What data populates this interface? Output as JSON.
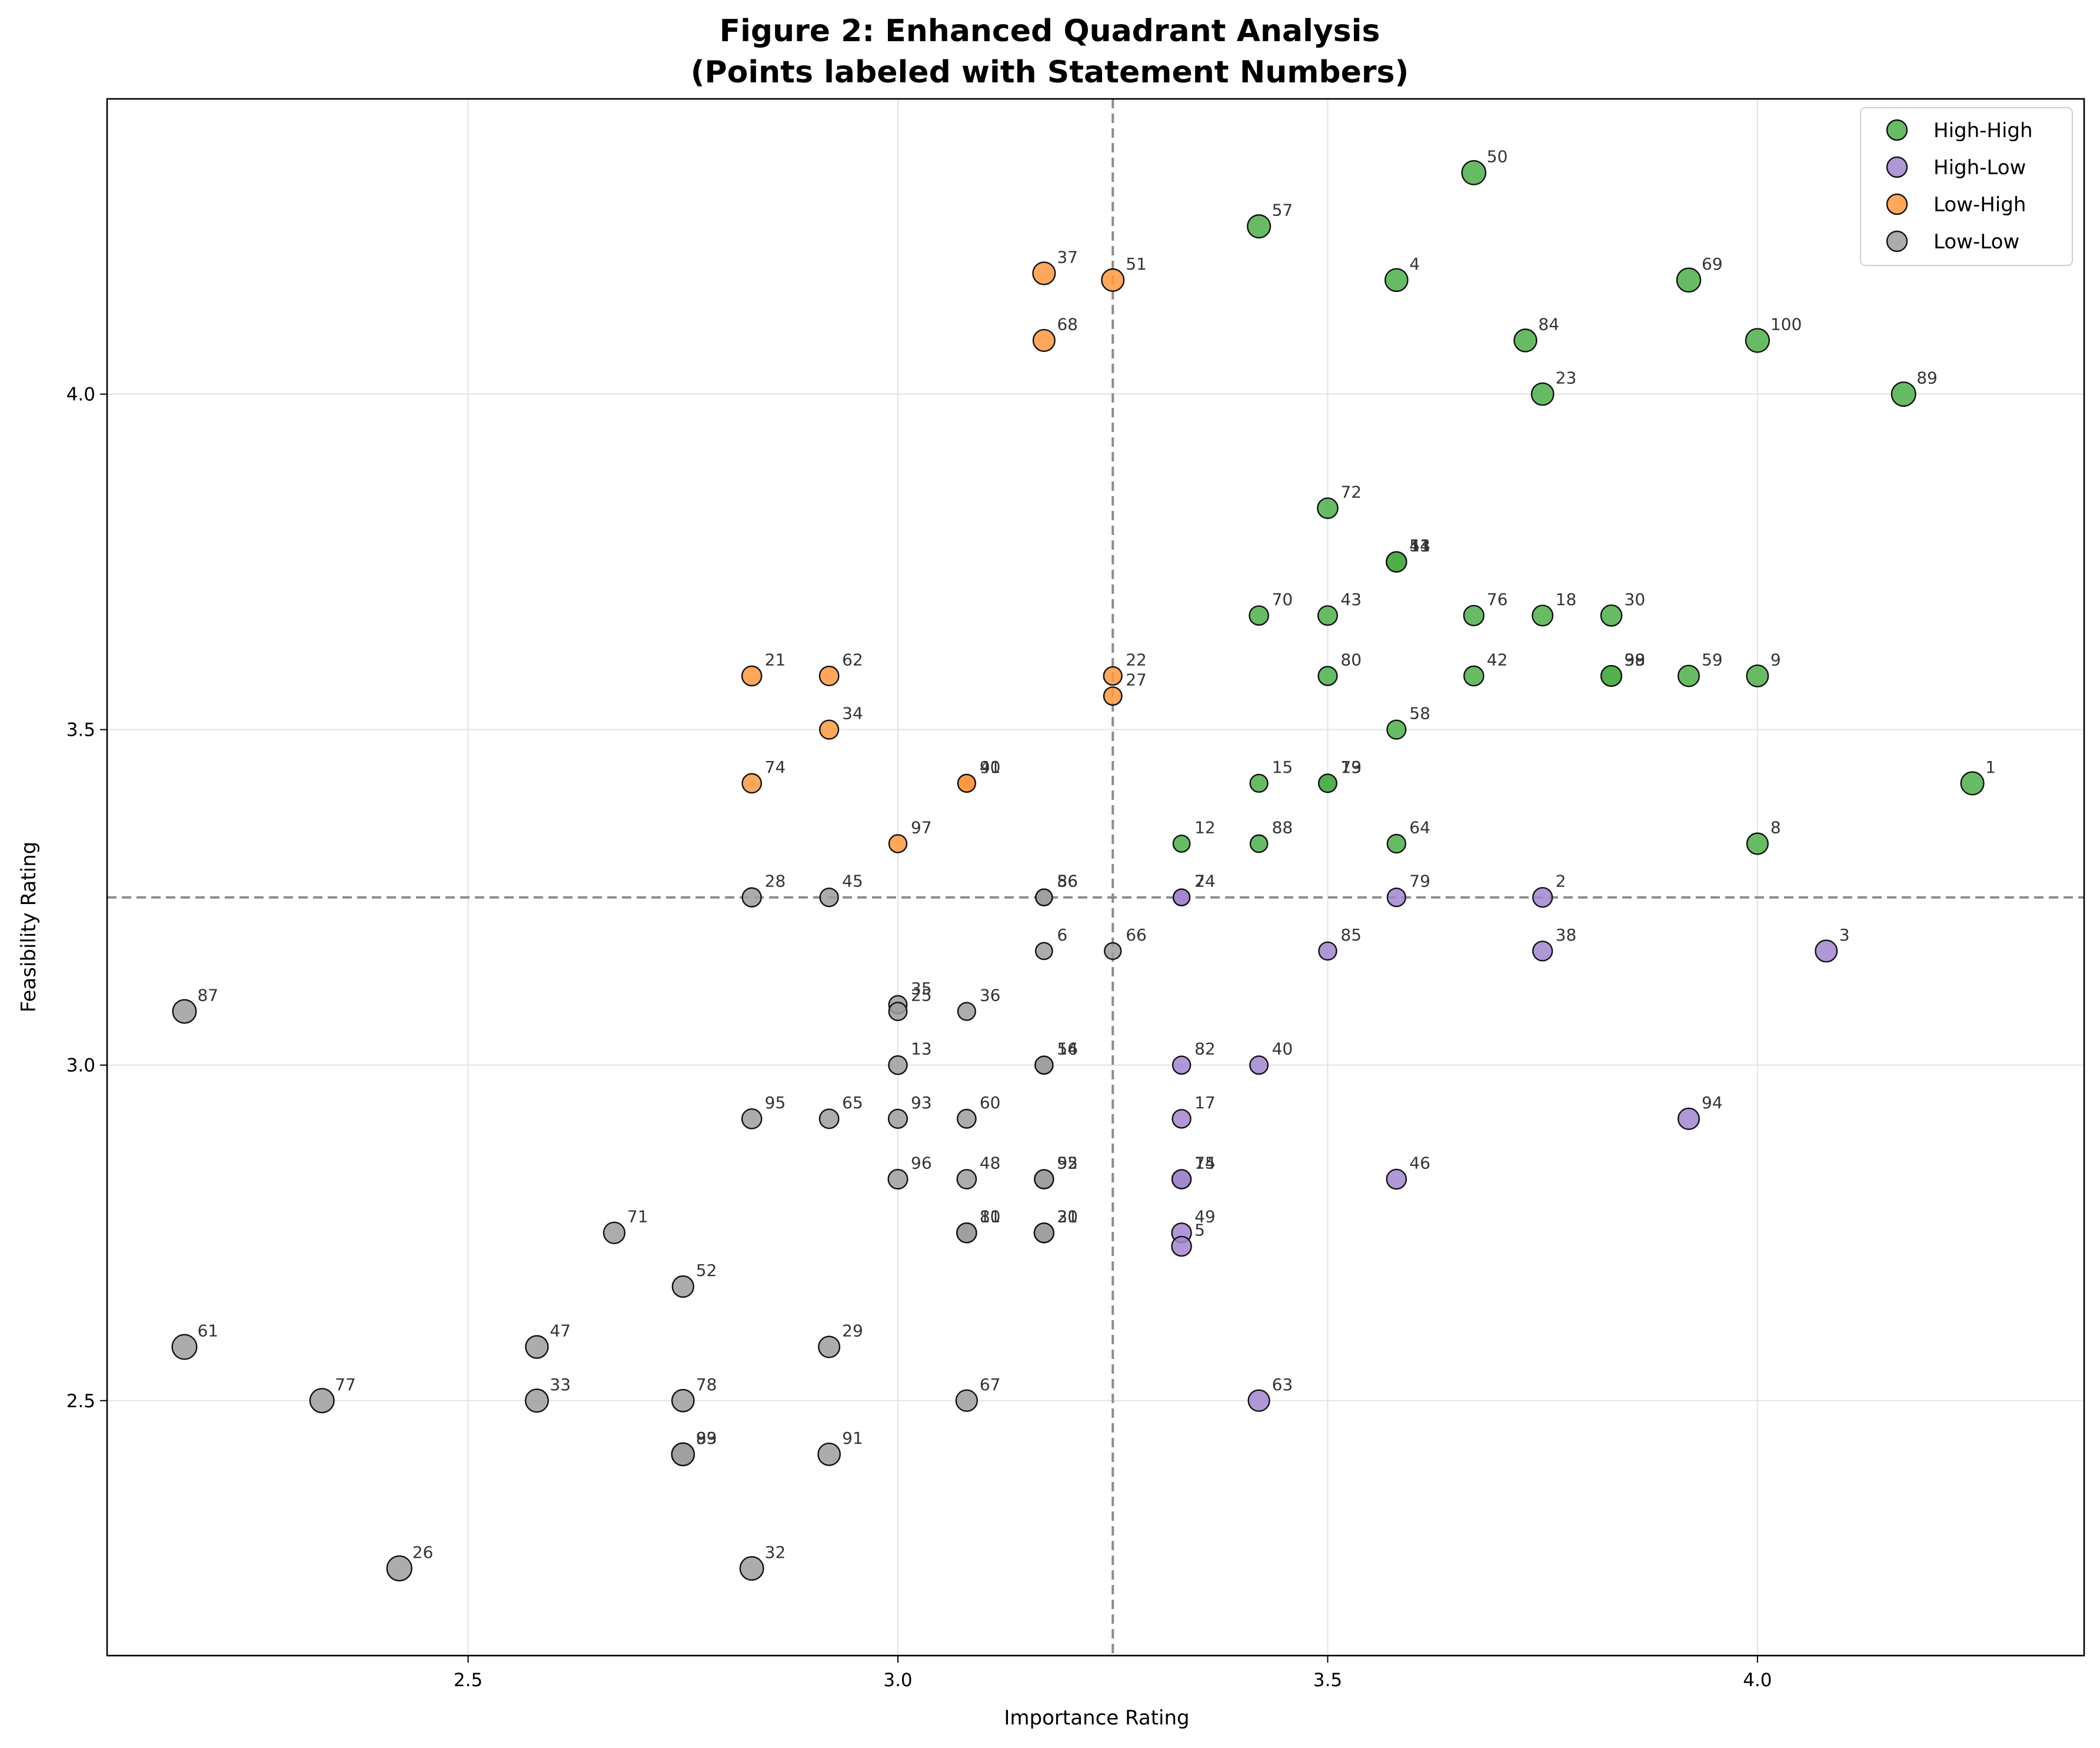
{
  "chart_data": {
    "type": "scatter",
    "title_line1": "Figure 2: Enhanced Quadrant Analysis",
    "title_line2": "(Points labeled with Statement Numbers)",
    "xlabel": "Importance Rating",
    "ylabel": "Feasibility Rating",
    "xlim": [
      2.08,
      4.38
    ],
    "ylim": [
      2.12,
      4.44
    ],
    "xticks": [
      2.5,
      3.0,
      3.5,
      4.0
    ],
    "xtick_labels": [
      "2.5",
      "3.0",
      "3.5",
      "4.0"
    ],
    "yticks": [
      2.5,
      3.0,
      3.5,
      4.0
    ],
    "ytick_labels": [
      "2.5",
      "3.0",
      "3.5",
      "4.0"
    ],
    "grid": true,
    "x_threshold": 3.25,
    "y_threshold": 3.25,
    "legend_position": "upper-right",
    "series": [
      {
        "name": "High-High",
        "color": "#4daf4a",
        "points": [
          {
            "id": "50",
            "x": 3.67,
            "y": 4.33
          },
          {
            "id": "57",
            "x": 3.42,
            "y": 4.25
          },
          {
            "id": "4",
            "x": 3.58,
            "y": 4.17
          },
          {
            "id": "69",
            "x": 3.92,
            "y": 4.17
          },
          {
            "id": "84",
            "x": 3.73,
            "y": 4.08
          },
          {
            "id": "100",
            "x": 4.0,
            "y": 4.08
          },
          {
            "id": "23",
            "x": 3.75,
            "y": 4.0
          },
          {
            "id": "89",
            "x": 4.17,
            "y": 4.0
          },
          {
            "id": "72",
            "x": 3.5,
            "y": 3.83
          },
          {
            "id": "44",
            "x": 3.58,
            "y": 3.75
          },
          {
            "id": "53",
            "x": 3.58,
            "y": 3.75
          },
          {
            "id": "11",
            "x": 3.58,
            "y": 3.75
          },
          {
            "id": "70",
            "x": 3.42,
            "y": 3.67
          },
          {
            "id": "43",
            "x": 3.5,
            "y": 3.67
          },
          {
            "id": "76",
            "x": 3.67,
            "y": 3.67
          },
          {
            "id": "18",
            "x": 3.75,
            "y": 3.67
          },
          {
            "id": "30",
            "x": 3.83,
            "y": 3.67
          },
          {
            "id": "80",
            "x": 3.5,
            "y": 3.58
          },
          {
            "id": "42",
            "x": 3.67,
            "y": 3.58
          },
          {
            "id": "39",
            "x": 3.83,
            "y": 3.58
          },
          {
            "id": "98",
            "x": 3.83,
            "y": 3.58
          },
          {
            "id": "59",
            "x": 3.92,
            "y": 3.58
          },
          {
            "id": "9",
            "x": 4.0,
            "y": 3.58
          },
          {
            "id": "58",
            "x": 3.58,
            "y": 3.5
          },
          {
            "id": "15",
            "x": 3.42,
            "y": 3.42
          },
          {
            "id": "19",
            "x": 3.5,
            "y": 3.42
          },
          {
            "id": "73",
            "x": 3.5,
            "y": 3.42
          },
          {
            "id": "1",
            "x": 4.25,
            "y": 3.42
          },
          {
            "id": "12",
            "x": 3.33,
            "y": 3.33
          },
          {
            "id": "88",
            "x": 3.42,
            "y": 3.33
          },
          {
            "id": "64",
            "x": 3.58,
            "y": 3.33
          },
          {
            "id": "8",
            "x": 4.0,
            "y": 3.33
          }
        ]
      },
      {
        "name": "High-Low",
        "color": "#a285cf",
        "points": [
          {
            "id": "7",
            "x": 3.33,
            "y": 3.25
          },
          {
            "id": "24",
            "x": 3.33,
            "y": 3.25
          },
          {
            "id": "79",
            "x": 3.58,
            "y": 3.25
          },
          {
            "id": "2",
            "x": 3.75,
            "y": 3.25
          },
          {
            "id": "85",
            "x": 3.5,
            "y": 3.17
          },
          {
            "id": "38",
            "x": 3.75,
            "y": 3.17
          },
          {
            "id": "3",
            "x": 4.08,
            "y": 3.17
          },
          {
            "id": "82",
            "x": 3.33,
            "y": 3.0
          },
          {
            "id": "40",
            "x": 3.42,
            "y": 3.0
          },
          {
            "id": "17",
            "x": 3.33,
            "y": 2.92
          },
          {
            "id": "94",
            "x": 3.92,
            "y": 2.92
          },
          {
            "id": "75",
            "x": 3.33,
            "y": 2.83
          },
          {
            "id": "14",
            "x": 3.33,
            "y": 2.83
          },
          {
            "id": "46",
            "x": 3.58,
            "y": 2.83
          },
          {
            "id": "49",
            "x": 3.33,
            "y": 2.75
          },
          {
            "id": "5",
            "x": 3.33,
            "y": 2.73
          },
          {
            "id": "63",
            "x": 3.42,
            "y": 2.5
          }
        ]
      },
      {
        "name": "Low-High",
        "color": "#ff983e",
        "points": [
          {
            "id": "37",
            "x": 3.17,
            "y": 4.18
          },
          {
            "id": "51",
            "x": 3.25,
            "y": 4.17
          },
          {
            "id": "68",
            "x": 3.17,
            "y": 4.08
          },
          {
            "id": "21",
            "x": 2.83,
            "y": 3.58
          },
          {
            "id": "62",
            "x": 2.92,
            "y": 3.58
          },
          {
            "id": "22",
            "x": 3.25,
            "y": 3.58
          },
          {
            "id": "27",
            "x": 3.25,
            "y": 3.55
          },
          {
            "id": "34",
            "x": 2.92,
            "y": 3.5
          },
          {
            "id": "74",
            "x": 2.83,
            "y": 3.42
          },
          {
            "id": "90",
            "x": 3.08,
            "y": 3.42
          },
          {
            "id": "41",
            "x": 3.08,
            "y": 3.42
          },
          {
            "id": "97",
            "x": 3.0,
            "y": 3.33
          }
        ]
      },
      {
        "name": "Low-Low",
        "color": "#9e9e9e",
        "points": [
          {
            "id": "28",
            "x": 2.83,
            "y": 3.25
          },
          {
            "id": "45",
            "x": 2.92,
            "y": 3.25
          },
          {
            "id": "86",
            "x": 3.17,
            "y": 3.25
          },
          {
            "id": "56",
            "x": 3.17,
            "y": 3.25
          },
          {
            "id": "6",
            "x": 3.17,
            "y": 3.17
          },
          {
            "id": "66",
            "x": 3.25,
            "y": 3.17
          },
          {
            "id": "87",
            "x": 2.17,
            "y": 3.08
          },
          {
            "id": "35",
            "x": 3.0,
            "y": 3.09
          },
          {
            "id": "25",
            "x": 3.0,
            "y": 3.08
          },
          {
            "id": "36",
            "x": 3.08,
            "y": 3.08
          },
          {
            "id": "13",
            "x": 3.0,
            "y": 3.0
          },
          {
            "id": "16",
            "x": 3.17,
            "y": 3.0
          },
          {
            "id": "54",
            "x": 3.17,
            "y": 3.0
          },
          {
            "id": "95",
            "x": 2.83,
            "y": 2.92
          },
          {
            "id": "65",
            "x": 2.92,
            "y": 2.92
          },
          {
            "id": "93",
            "x": 3.0,
            "y": 2.92
          },
          {
            "id": "60",
            "x": 3.08,
            "y": 2.92
          },
          {
            "id": "96",
            "x": 3.0,
            "y": 2.83
          },
          {
            "id": "48",
            "x": 3.08,
            "y": 2.83
          },
          {
            "id": "55",
            "x": 3.17,
            "y": 2.83
          },
          {
            "id": "92",
            "x": 3.17,
            "y": 2.83
          },
          {
            "id": "71",
            "x": 2.67,
            "y": 2.75
          },
          {
            "id": "81",
            "x": 3.08,
            "y": 2.75
          },
          {
            "id": "10",
            "x": 3.08,
            "y": 2.75
          },
          {
            "id": "31",
            "x": 3.17,
            "y": 2.75
          },
          {
            "id": "20",
            "x": 3.17,
            "y": 2.75
          },
          {
            "id": "52",
            "x": 2.75,
            "y": 2.67
          },
          {
            "id": "61",
            "x": 2.17,
            "y": 2.58
          },
          {
            "id": "47",
            "x": 2.58,
            "y": 2.58
          },
          {
            "id": "29",
            "x": 2.92,
            "y": 2.58
          },
          {
            "id": "77",
            "x": 2.33,
            "y": 2.5
          },
          {
            "id": "33",
            "x": 2.58,
            "y": 2.5
          },
          {
            "id": "78",
            "x": 2.75,
            "y": 2.5
          },
          {
            "id": "67",
            "x": 3.08,
            "y": 2.5
          },
          {
            "id": "83",
            "x": 2.75,
            "y": 2.42
          },
          {
            "id": "99",
            "x": 2.75,
            "y": 2.42
          },
          {
            "id": "91",
            "x": 2.92,
            "y": 2.42
          },
          {
            "id": "26",
            "x": 2.42,
            "y": 2.25
          },
          {
            "id": "32",
            "x": 2.83,
            "y": 2.25
          }
        ]
      }
    ]
  }
}
